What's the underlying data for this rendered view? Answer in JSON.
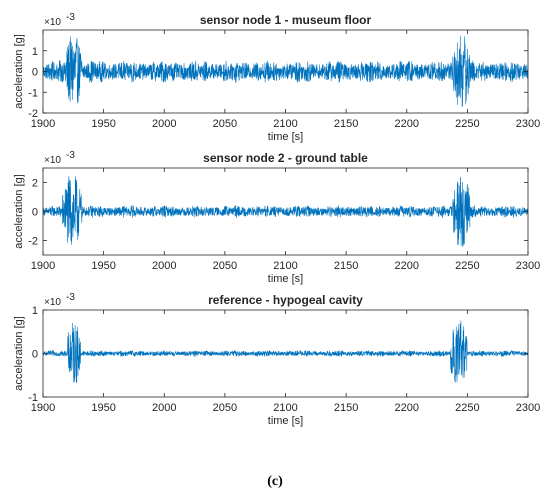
{
  "panel_label": "(c)",
  "colors": {
    "signal": "#0072BD",
    "axis": "#262626",
    "background": "#ffffff"
  },
  "chart_data": [
    {
      "type": "line",
      "title": "sensor node 1 - museum floor",
      "xlabel": "time [s]",
      "ylabel": "acceleration [g]",
      "yscale_label": "×10",
      "yscale_exp": "-3",
      "xlim": [
        1900,
        2300
      ],
      "ylim": [
        -2,
        2
      ],
      "xticks": [
        1900,
        1950,
        2000,
        2050,
        2100,
        2150,
        2200,
        2250,
        2300
      ],
      "yticks": [
        -2,
        -1,
        0,
        1
      ],
      "series": [
        {
          "baseline_amplitude": 0.45,
          "bursts": [
            {
              "start": 1918,
              "end": 1932,
              "amplitude": 1.8
            },
            {
              "start": 2238,
              "end": 2252,
              "amplitude": 1.9
            }
          ]
        }
      ]
    },
    {
      "type": "line",
      "title": "sensor node 2 - ground table",
      "xlabel": "time [s]",
      "ylabel": "acceleration [g]",
      "yscale_label": "×10",
      "yscale_exp": "-3",
      "xlim": [
        1900,
        2300
      ],
      "ylim": [
        -3,
        3
      ],
      "xticks": [
        1900,
        1950,
        2000,
        2050,
        2100,
        2150,
        2200,
        2250,
        2300
      ],
      "yticks": [
        -2,
        0,
        2
      ],
      "series": [
        {
          "baseline_amplitude": 0.35,
          "bursts": [
            {
              "start": 1916,
              "end": 1932,
              "amplitude": 2.6
            },
            {
              "start": 2238,
              "end": 2252,
              "amplitude": 2.7
            }
          ]
        }
      ]
    },
    {
      "type": "line",
      "title": "reference - hypogeal cavity",
      "xlabel": "time [s]",
      "ylabel": "acceleration [g]",
      "yscale_label": "×10",
      "yscale_exp": "-3",
      "xlim": [
        1900,
        2300
      ],
      "ylim": [
        -1,
        1
      ],
      "xticks": [
        1900,
        1950,
        2000,
        2050,
        2100,
        2150,
        2200,
        2250,
        2300
      ],
      "yticks": [
        -1,
        0,
        1
      ],
      "series": [
        {
          "baseline_amplitude": 0.06,
          "bursts": [
            {
              "start": 1920,
              "end": 1931,
              "amplitude": 0.75
            },
            {
              "start": 2236,
              "end": 2250,
              "amplitude": 0.8
            }
          ]
        }
      ]
    }
  ]
}
